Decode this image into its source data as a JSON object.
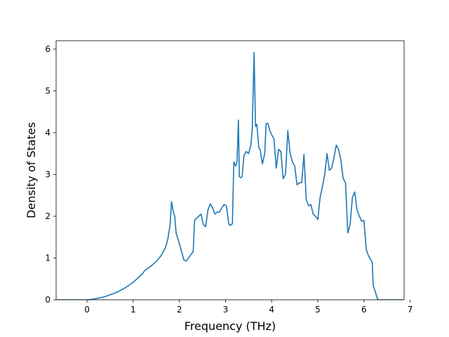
{
  "chart_data": {
    "type": "line",
    "title": "",
    "xlabel": "Frequency (THz)",
    "ylabel": "Density of States",
    "xlim": [
      -0.67,
      6.87
    ],
    "ylim": [
      0,
      6.2
    ],
    "xticks": [
      0,
      1,
      2,
      3,
      4,
      5,
      6,
      7
    ],
    "yticks": [
      0,
      1,
      2,
      3,
      4,
      5,
      6
    ],
    "grid": false,
    "line_color": "#1f77b4",
    "series": [
      {
        "x": [
          -0.65,
          -0.4,
          -0.2,
          0.0,
          0.1,
          0.2,
          0.3,
          0.4,
          0.5,
          0.6,
          0.7,
          0.8,
          0.9,
          1.0,
          1.1,
          1.2,
          1.25,
          1.3,
          1.35,
          1.4,
          1.5,
          1.6,
          1.7,
          1.75,
          1.8,
          1.83,
          1.87,
          1.9,
          1.93,
          1.97,
          2.0,
          2.05,
          2.1,
          2.15,
          2.2,
          2.25,
          2.3,
          2.33,
          2.37,
          2.42,
          2.47,
          2.52,
          2.57,
          2.62,
          2.67,
          2.72,
          2.77,
          2.82,
          2.87,
          2.92,
          2.97,
          3.02,
          3.07,
          3.1,
          3.15,
          3.18,
          3.22,
          3.25,
          3.28,
          3.3,
          3.33,
          3.36,
          3.4,
          3.45,
          3.5,
          3.55,
          3.58,
          3.62,
          3.65,
          3.68,
          3.72,
          3.75,
          3.8,
          3.85,
          3.88,
          3.92,
          3.96,
          4.0,
          4.05,
          4.1,
          4.15,
          4.2,
          4.25,
          4.3,
          4.35,
          4.4,
          4.45,
          4.5,
          4.55,
          4.6,
          4.65,
          4.7,
          4.75,
          4.8,
          4.85,
          4.9,
          4.95,
          5.0,
          5.05,
          5.1,
          5.15,
          5.2,
          5.25,
          5.3,
          5.35,
          5.4,
          5.45,
          5.5,
          5.55,
          5.6,
          5.65,
          5.7,
          5.75,
          5.8,
          5.85,
          5.9,
          5.95,
          6.0,
          6.05,
          6.1,
          6.15,
          6.18,
          6.2,
          6.3,
          6.85
        ],
        "y": [
          0.0,
          0.0,
          0.0,
          0.0,
          0.01,
          0.03,
          0.05,
          0.08,
          0.12,
          0.16,
          0.21,
          0.27,
          0.34,
          0.42,
          0.52,
          0.62,
          0.7,
          0.74,
          0.78,
          0.82,
          0.92,
          1.05,
          1.25,
          1.45,
          1.8,
          2.35,
          2.1,
          2.0,
          1.6,
          1.45,
          1.35,
          1.15,
          0.95,
          0.93,
          1.0,
          1.08,
          1.15,
          1.9,
          1.95,
          2.0,
          2.05,
          1.8,
          1.75,
          2.15,
          2.3,
          2.2,
          2.05,
          2.1,
          2.1,
          2.2,
          2.28,
          2.25,
          1.82,
          1.78,
          1.82,
          3.3,
          3.2,
          3.3,
          4.3,
          2.95,
          2.92,
          2.95,
          3.45,
          3.55,
          3.5,
          3.7,
          4.1,
          5.92,
          4.15,
          4.2,
          3.65,
          3.6,
          3.25,
          3.5,
          4.22,
          4.22,
          4.05,
          3.95,
          3.85,
          3.15,
          3.6,
          3.55,
          2.9,
          3.0,
          4.05,
          3.5,
          3.3,
          3.2,
          2.75,
          2.8,
          2.8,
          3.48,
          2.4,
          2.25,
          2.28,
          2.05,
          2.0,
          1.92,
          2.45,
          2.7,
          3.0,
          3.5,
          3.1,
          3.15,
          3.4,
          3.7,
          3.6,
          3.35,
          2.9,
          2.8,
          1.6,
          1.8,
          2.45,
          2.58,
          2.15,
          2.0,
          1.88,
          1.9,
          1.2,
          1.05,
          0.95,
          0.9,
          0.35,
          0.0,
          0.0
        ]
      }
    ]
  }
}
